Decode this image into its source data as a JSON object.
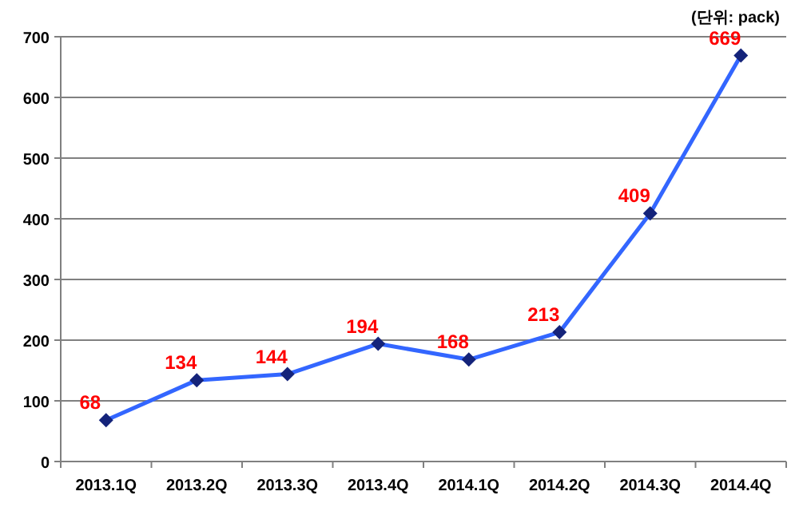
{
  "chart_data": {
    "type": "line",
    "categories": [
      "2013.1Q",
      "2013.2Q",
      "2013.3Q",
      "2013.4Q",
      "2014.1Q",
      "2014.2Q",
      "2014.3Q",
      "2014.4Q"
    ],
    "series": [
      {
        "color": "#3366ff",
        "values": [
          68,
          134,
          144,
          194,
          168,
          213,
          409,
          669
        ]
      }
    ],
    "ylim": [
      0,
      700
    ],
    "yticks": [
      0,
      100,
      200,
      300,
      400,
      500,
      600,
      700
    ],
    "grid": "y",
    "marker": "diamond",
    "line_style": "solid",
    "data_labels": true,
    "annotations": [
      "(단위: pack)"
    ]
  }
}
